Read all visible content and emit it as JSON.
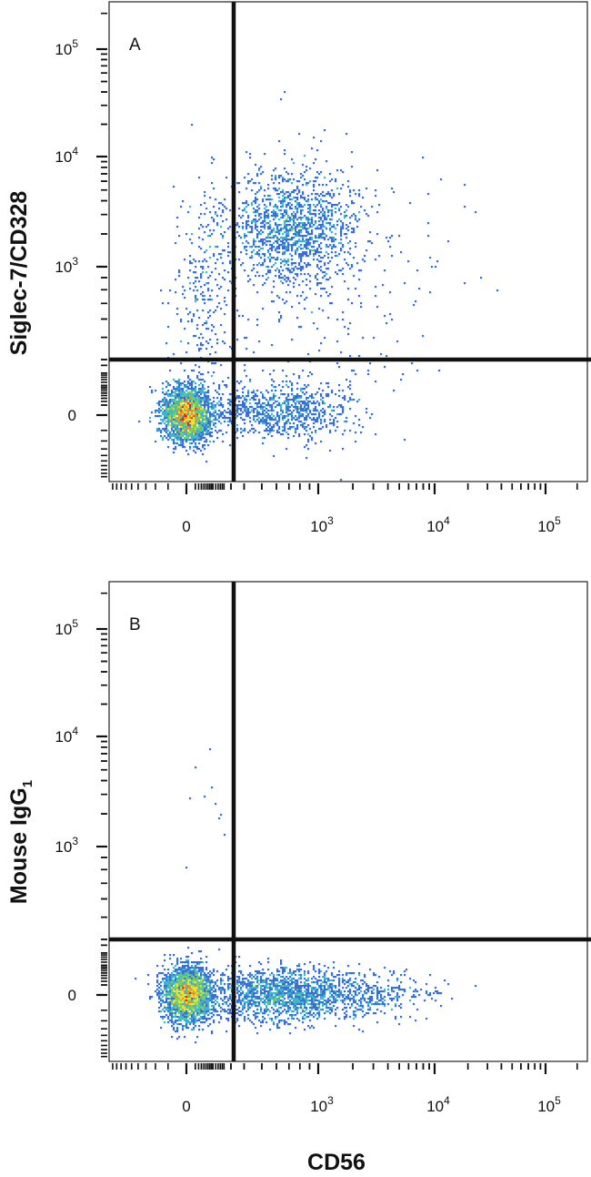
{
  "chart_data": {
    "type": "scatter",
    "style": "flow-cytometry density dot plot (biexponential axes), quadrant gates",
    "xlabel": "CD56",
    "x_ticks": [
      {
        "value": 0,
        "base": "0",
        "exp": ""
      },
      {
        "value": 1000,
        "base": "10",
        "exp": "3"
      },
      {
        "value": 10000,
        "base": "10",
        "exp": "4"
      },
      {
        "value": 100000,
        "base": "10",
        "exp": "5"
      }
    ],
    "y_ticks": [
      {
        "value": 0,
        "base": "0",
        "exp": ""
      },
      {
        "value": 1000,
        "base": "10",
        "exp": "3"
      },
      {
        "value": 10000,
        "base": "10",
        "exp": "4"
      },
      {
        "value": 100000,
        "base": "10",
        "exp": "5"
      }
    ],
    "density_colors": [
      "#2e3fa8",
      "#3d6fd0",
      "#3fb6c9",
      "#7cd05a",
      "#e8e23a",
      "#f08a24",
      "#e4201d"
    ],
    "panels": [
      {
        "letter": "A",
        "ylabel": "Siglec-7/CD328",
        "ylabel_sub": "",
        "gate_x": 350,
        "gate_y": 400,
        "populations": [
          {
            "description": "double-negative cluster",
            "x_center": 0,
            "y_center": 0,
            "count": 2600,
            "density": "high"
          },
          {
            "description": "CD56+ Siglec-7+",
            "x_center": 800,
            "y_center": 2000,
            "count": 1500,
            "density": "medium"
          },
          {
            "description": "CD56+ Siglec-7-",
            "x_center": 700,
            "y_center": 0,
            "count": 900,
            "density": "low"
          },
          {
            "description": "CD56- Siglec-7+",
            "x_center": 150,
            "y_center": 900,
            "count": 250,
            "density": "low"
          }
        ]
      },
      {
        "letter": "B",
        "ylabel": "Mouse IgG",
        "ylabel_sub": "1",
        "gate_x": 350,
        "gate_y": 400,
        "populations": [
          {
            "description": "double-negative cluster",
            "x_center": 0,
            "y_center": 0,
            "count": 2600,
            "density": "high"
          },
          {
            "description": "CD56+ isotype-negative",
            "x_center": 900,
            "y_center": 0,
            "count": 1700,
            "density": "medium"
          }
        ]
      }
    ]
  }
}
